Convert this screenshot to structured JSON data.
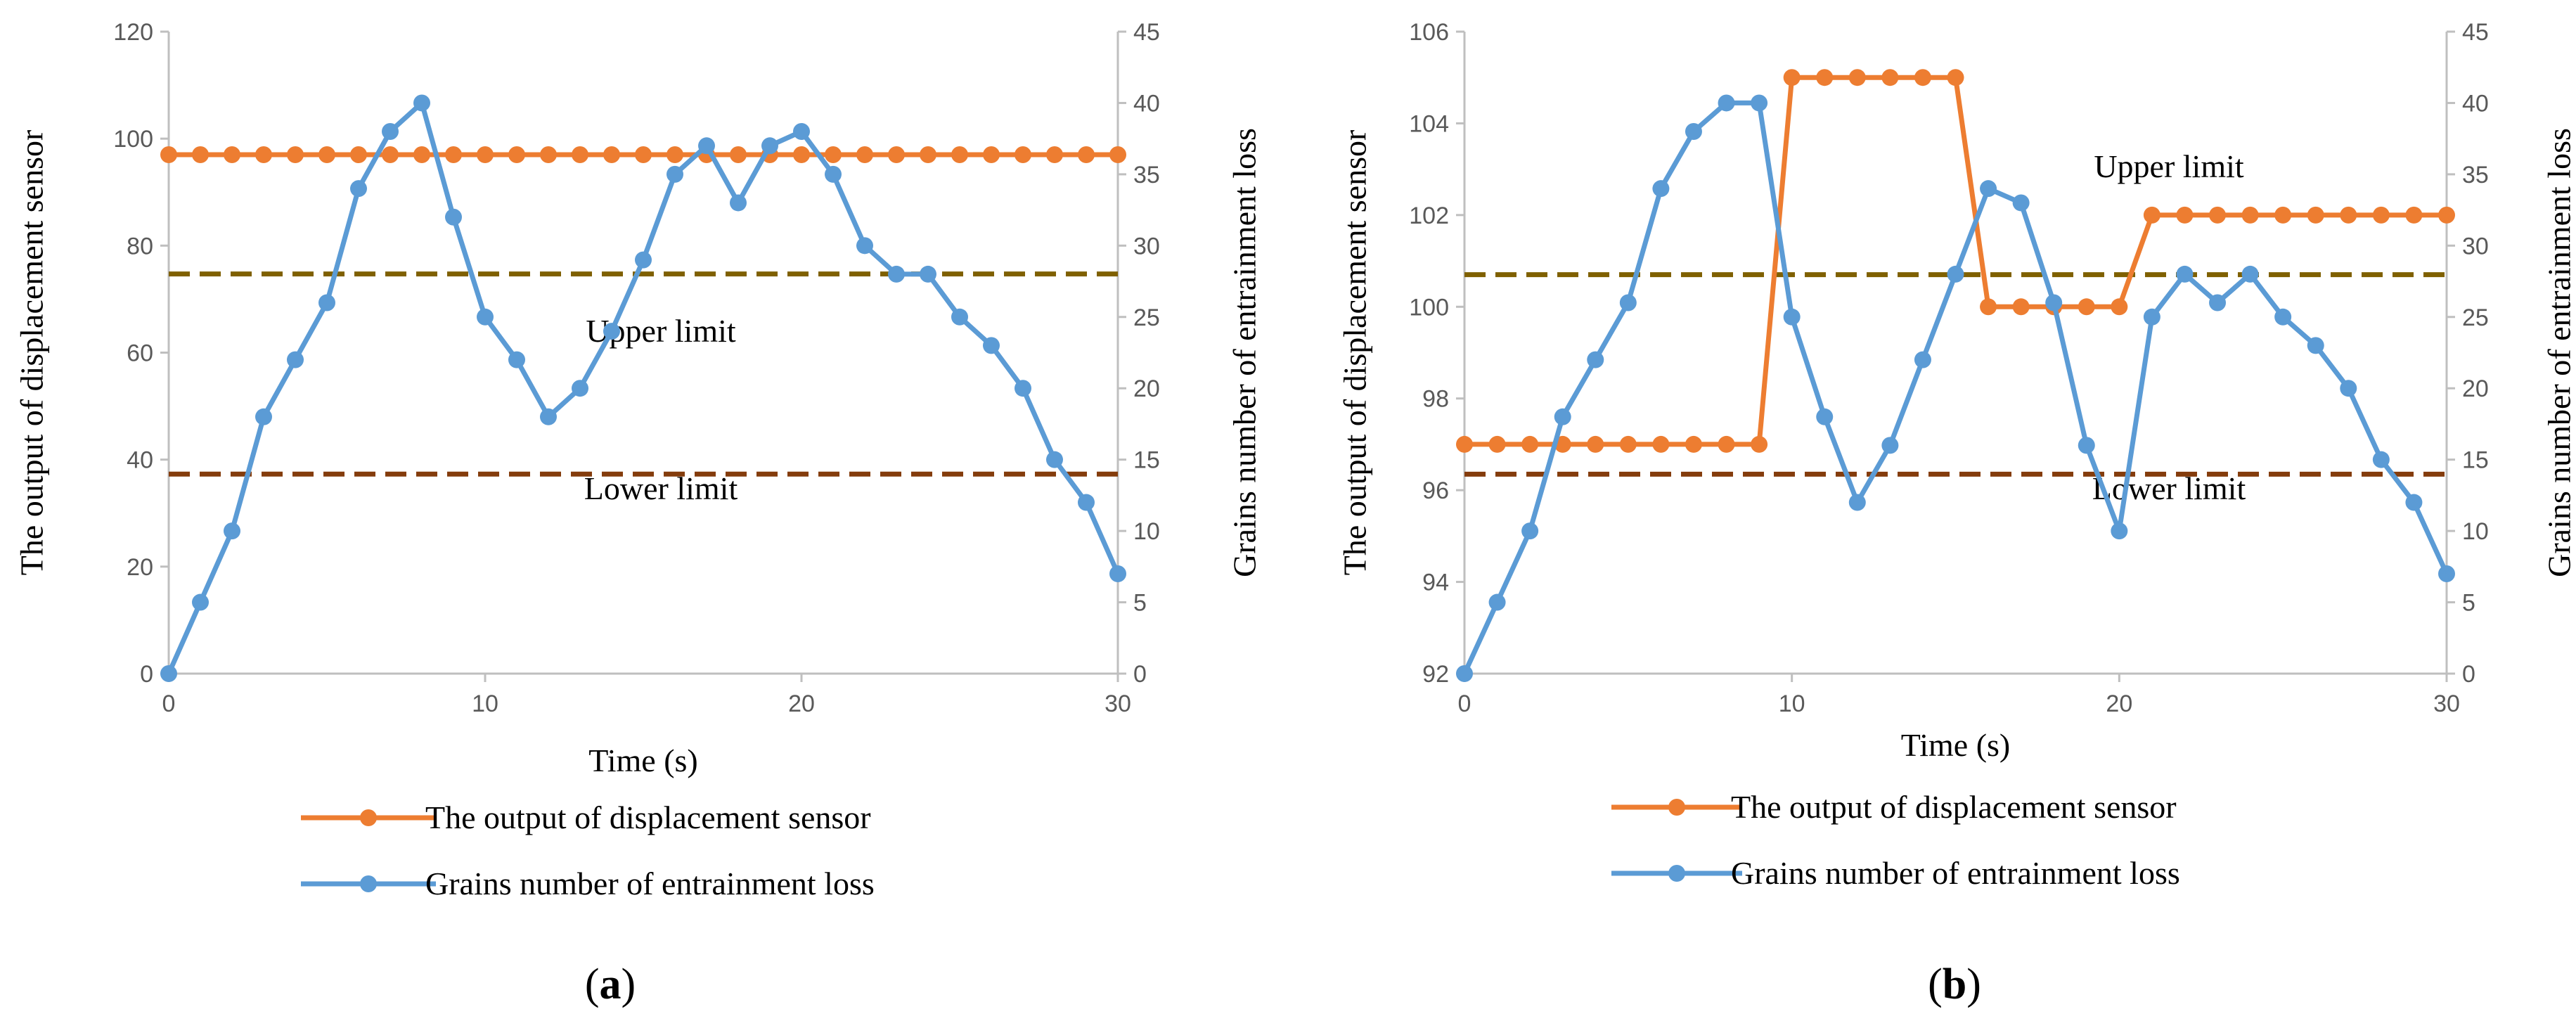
{
  "chart_data": [
    {
      "type": "line",
      "panel_label": "(a)",
      "panel_letter": "a",
      "x": [
        0,
        1,
        2,
        3,
        4,
        5,
        6,
        7,
        8,
        9,
        10,
        11,
        12,
        13,
        14,
        15,
        16,
        17,
        18,
        19,
        20,
        21,
        22,
        23,
        24,
        25,
        26,
        27,
        28,
        29,
        30
      ],
      "xlim": [
        0,
        30
      ],
      "xticks": [
        0,
        10,
        20,
        30
      ],
      "xlabel": "Time (s)",
      "ylabel": "The output of displacement sensor",
      "ylim": [
        0,
        120
      ],
      "yticks": [
        0,
        20,
        40,
        60,
        80,
        100,
        120
      ],
      "y2label": "Grains number of entrainment loss",
      "y2lim": [
        0,
        45
      ],
      "y2ticks": [
        0,
        5,
        10,
        15,
        20,
        25,
        30,
        35,
        40,
        45
      ],
      "series": [
        {
          "name": "The output of displacement sensor",
          "axis": "left",
          "color": "#ED7D31",
          "values": [
            97,
            97,
            97,
            97,
            97,
            97,
            97,
            97,
            97,
            97,
            97,
            97,
            97,
            97,
            97,
            97,
            97,
            97,
            97,
            97,
            97,
            97,
            97,
            97,
            97,
            97,
            97,
            97,
            97,
            97,
            97
          ]
        },
        {
          "name": "Grains number of entrainment loss",
          "axis": "right",
          "color": "#5B9BD5",
          "values": [
            0,
            5,
            10,
            18,
            22,
            26,
            34,
            38,
            40,
            32,
            25,
            22,
            18,
            20,
            24,
            29,
            35,
            37,
            33,
            37,
            38,
            35,
            30,
            28,
            28,
            25,
            23,
            20,
            15,
            12,
            7
          ]
        }
      ],
      "reference_lines": [
        {
          "label": "Upper limit",
          "axis": "left",
          "value": 74.7,
          "color": "#7F6000"
        },
        {
          "label": "Lower limit",
          "axis": "left",
          "value": 37.3,
          "color": "#843C0C"
        }
      ]
    },
    {
      "type": "line",
      "panel_label": "(b)",
      "panel_letter": "b",
      "x": [
        0,
        1,
        2,
        3,
        4,
        5,
        6,
        7,
        8,
        9,
        10,
        11,
        12,
        13,
        14,
        15,
        16,
        17,
        18,
        19,
        20,
        21,
        22,
        23,
        24,
        25,
        26,
        27,
        28,
        29,
        30
      ],
      "xlim": [
        0,
        30
      ],
      "xticks": [
        0,
        10,
        20,
        30
      ],
      "xlabel": "Time (s)",
      "ylabel": "The output of displacement sensor",
      "ylim": [
        92,
        106
      ],
      "yticks": [
        92,
        94,
        96,
        98,
        100,
        102,
        104,
        106
      ],
      "y2label": "Grains number of entrainment loss",
      "y2lim": [
        0,
        45
      ],
      "y2ticks": [
        0,
        5,
        10,
        15,
        20,
        25,
        30,
        35,
        40,
        45
      ],
      "series": [
        {
          "name": "The output of displacement sensor",
          "axis": "left",
          "color": "#ED7D31",
          "values": [
            97,
            97,
            97,
            97,
            97,
            97,
            97,
            97,
            97,
            97,
            105,
            105,
            105,
            105,
            105,
            105,
            100,
            100,
            100,
            100,
            100,
            102,
            102,
            102,
            102,
            102,
            102,
            102,
            102,
            102,
            102
          ]
        },
        {
          "name": "Grains number of entrainment loss",
          "axis": "right",
          "color": "#5B9BD5",
          "values": [
            0,
            5,
            10,
            18,
            22,
            26,
            34,
            38,
            40,
            40,
            25,
            18,
            12,
            16,
            22,
            28,
            34,
            33,
            26,
            16,
            10,
            25,
            28,
            26,
            28,
            25,
            23,
            20,
            15,
            12,
            7
          ]
        }
      ],
      "reference_lines": [
        {
          "label": "Upper limit",
          "axis": "left",
          "value": 100.7,
          "color": "#7F6000"
        },
        {
          "label": "Lower limit",
          "axis": "left",
          "value": 96.35,
          "color": "#843C0C"
        }
      ]
    }
  ]
}
